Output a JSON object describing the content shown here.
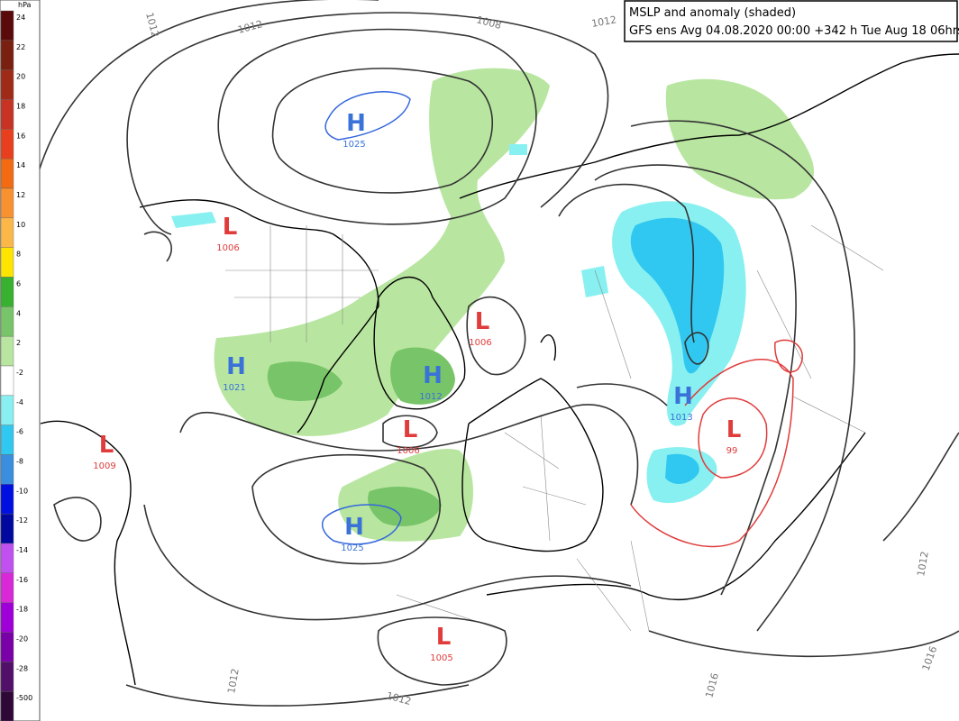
{
  "title": {
    "line1": "MSLP and anomaly (shaded)",
    "line2": "GFS ens Avg 04.08.2020 00:00 +342 h Tue Aug 18 06hrs"
  },
  "legend": {
    "unit": "hPa",
    "entries": [
      {
        "label": 24,
        "color": "#5a0a0a"
      },
      {
        "label": 22,
        "color": "#7a2010"
      },
      {
        "label": 20,
        "color": "#a02a18"
      },
      {
        "label": 18,
        "color": "#c83424"
      },
      {
        "label": 16,
        "color": "#e8401e"
      },
      {
        "label": 14,
        "color": "#f26a12"
      },
      {
        "label": 12,
        "color": "#f89230"
      },
      {
        "label": 10,
        "color": "#fbb848"
      },
      {
        "label": 8,
        "color": "#ffe400"
      },
      {
        "label": 6,
        "color": "#38b030"
      },
      {
        "label": 4,
        "color": "#78c468"
      },
      {
        "label": 2,
        "color": "#b8e6a0"
      },
      {
        "label": -2,
        "color": "#ffffff"
      },
      {
        "label": -4,
        "color": "#88f0f0"
      },
      {
        "label": -6,
        "color": "#30c8f0"
      },
      {
        "label": -8,
        "color": "#3a8ee0"
      },
      {
        "label": -10,
        "color": "#0010e0"
      },
      {
        "label": -12,
        "color": "#0008a0"
      },
      {
        "label": -14,
        "color": "#c050f0"
      },
      {
        "label": -16,
        "color": "#d828d8"
      },
      {
        "label": -18,
        "color": "#a000d8"
      },
      {
        "label": -20,
        "color": "#7a00a8"
      },
      {
        "label": -28,
        "color": "#52106a"
      },
      {
        "label": -500,
        "color": "#300838"
      }
    ]
  },
  "centers": [
    {
      "letter": "H",
      "value": "1025"
    },
    {
      "letter": "L",
      "value": "1006"
    },
    {
      "letter": "H",
      "value": "1021"
    },
    {
      "letter": "L",
      "value": "1009"
    },
    {
      "letter": "L",
      "value": "1006"
    },
    {
      "letter": "H",
      "value": "1012"
    },
    {
      "letter": "L",
      "value": "1006"
    },
    {
      "letter": "H",
      "value": "1025"
    },
    {
      "letter": "L",
      "value": "1005"
    },
    {
      "letter": "H",
      "value": "1013"
    },
    {
      "letter": "L",
      "value": "99"
    }
  ],
  "contour_labels": [
    "1012",
    "1012",
    "1008",
    "1012",
    "1012",
    "1012",
    "1016",
    "1016",
    "1012"
  ]
}
